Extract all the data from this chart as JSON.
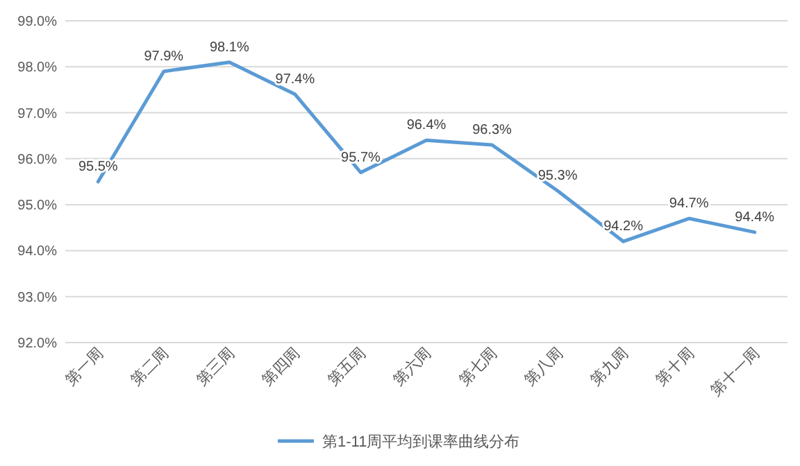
{
  "chart_data": {
    "type": "line",
    "categories": [
      "第一周",
      "第二周",
      "第三周",
      "第四周",
      "第五周",
      "第六周",
      "第七周",
      "第八周",
      "第九周",
      "第十周",
      "第十一周"
    ],
    "series": [
      {
        "name": "第1-11周平均到课率曲线分布",
        "color": "#5b9bd5",
        "values": [
          95.5,
          97.9,
          98.1,
          97.4,
          95.7,
          96.4,
          96.3,
          95.3,
          94.2,
          94.7,
          94.4
        ],
        "value_labels": [
          "95.5%",
          "97.9%",
          "98.1%",
          "97.4%",
          "95.7%",
          "96.4%",
          "96.3%",
          "95.3%",
          "94.2%",
          "94.7%",
          "94.4%"
        ]
      }
    ],
    "ylim": [
      92,
      99
    ],
    "yticks": [
      {
        "value": 92,
        "label": "92.0%"
      },
      {
        "value": 93,
        "label": "93.0%"
      },
      {
        "value": 94,
        "label": "94.0%"
      },
      {
        "value": 95,
        "label": "95.0%"
      },
      {
        "value": 96,
        "label": "96.0%"
      },
      {
        "value": 97,
        "label": "97.0%"
      },
      {
        "value": 98,
        "label": "98.0%"
      },
      {
        "value": 99,
        "label": "99.0%"
      }
    ],
    "grid": "y",
    "legend": "bottom",
    "marker": "none",
    "line_style": "solid"
  }
}
